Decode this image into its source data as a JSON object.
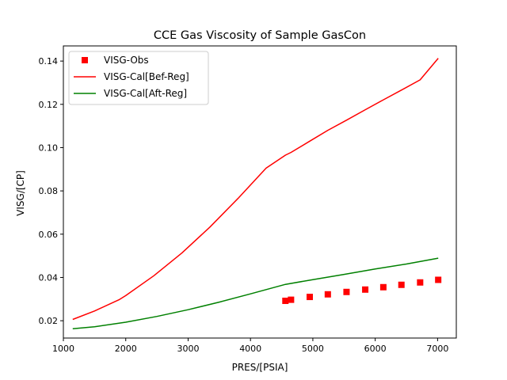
{
  "chart_data": {
    "type": "line",
    "title": "CCE Gas Viscosity of Sample GasCon",
    "xlabel": "PRES/[PSIA]",
    "ylabel": "VISG/[CP]",
    "xlim": [
      1000,
      7300
    ],
    "ylim": [
      0.012,
      0.147
    ],
    "xticks": [
      1000,
      2000,
      3000,
      4000,
      5000,
      6000,
      7000
    ],
    "xtick_labels": [
      "1000",
      "2000",
      "3000",
      "4000",
      "5000",
      "6000",
      "7000"
    ],
    "yticks": [
      0.02,
      0.04,
      0.06,
      0.08,
      0.1,
      0.12,
      0.14
    ],
    "ytick_labels": [
      "0.02",
      "0.04",
      "0.06",
      "0.08",
      "0.10",
      "0.12",
      "0.14"
    ],
    "grid": false,
    "legend": "upper-left",
    "series": [
      {
        "name": "VISG-Obs",
        "kind": "marker",
        "marker": "square",
        "color": "#ff0000",
        "x": [
          4560,
          4650,
          4950,
          5240,
          5540,
          5840,
          6130,
          6420,
          6720,
          7010
        ],
        "y": [
          0.0292,
          0.0297,
          0.031,
          0.0322,
          0.0333,
          0.0344,
          0.0355,
          0.0366,
          0.0377,
          0.0389
        ]
      },
      {
        "name": "VISG-Cal[Bef-Reg]",
        "kind": "line",
        "color": "#ff0000",
        "x": [
          1150,
          1500,
          1900,
          2000,
          2450,
          2900,
          3350,
          3800,
          4250,
          4560,
          4650,
          4950,
          5240,
          5540,
          5840,
          6130,
          6420,
          6720,
          7010
        ],
        "y": [
          0.0206,
          0.0245,
          0.0298,
          0.0316,
          0.0408,
          0.0513,
          0.0633,
          0.0765,
          0.0905,
          0.0965,
          0.0978,
          0.103,
          0.108,
          0.1127,
          0.1175,
          0.1221,
          0.1266,
          0.1313,
          0.1413
        ]
      },
      {
        "name": "VISG-Cal[Aft-Reg]",
        "kind": "line",
        "color": "#008000",
        "x": [
          1150,
          1500,
          2000,
          2500,
          3000,
          3500,
          4000,
          4560,
          5000,
          5500,
          6000,
          6500,
          7010
        ],
        "y": [
          0.0163,
          0.0172,
          0.0193,
          0.022,
          0.0251,
          0.0286,
          0.0324,
          0.0368,
          0.039,
          0.0414,
          0.0439,
          0.0462,
          0.0489
        ]
      }
    ]
  }
}
